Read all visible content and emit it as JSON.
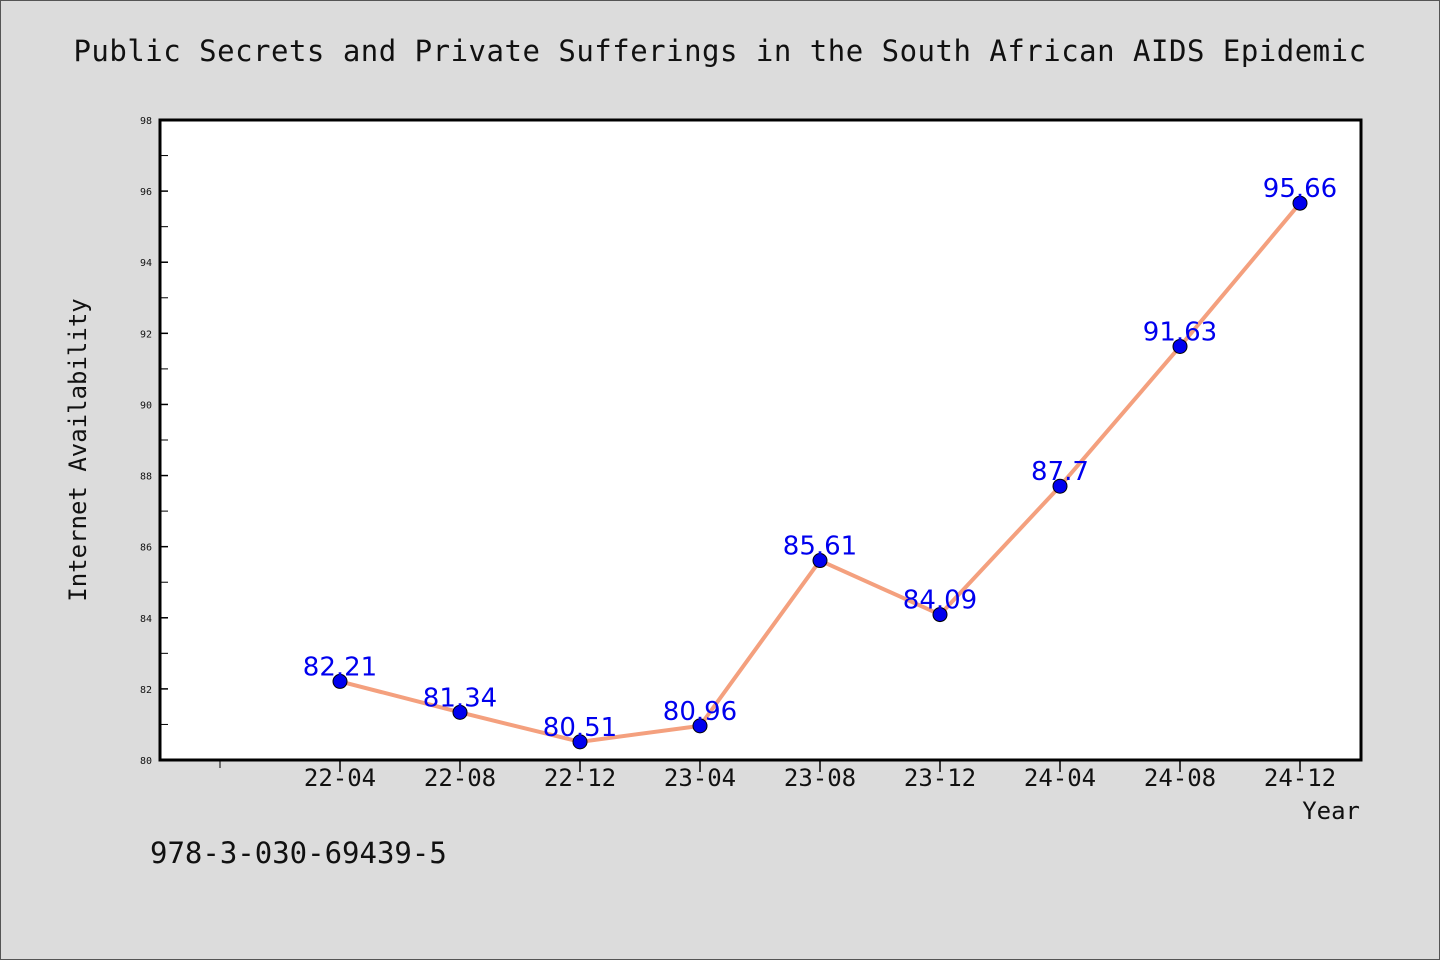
{
  "title": "Public Secrets and Private Sufferings in the South African AIDS Epidemic",
  "isbn": "978-3-030-69439-5",
  "chart_data": {
    "type": "line",
    "title": "Public Secrets and Private Sufferings in the South African AIDS Epidemic",
    "xlabel": "Year",
    "ylabel": "Internet Availability",
    "categories": [
      "22-04",
      "22-08",
      "22-12",
      "23-04",
      "23-08",
      "23-12",
      "24-04",
      "24-08",
      "24-12"
    ],
    "series": [
      {
        "values": [
          82.21,
          81.34,
          80.51,
          80.96,
          85.61,
          84.09,
          87.7,
          91.63,
          95.66
        ]
      }
    ],
    "value_labels": [
      "82.21",
      "81.34",
      "80.51",
      "80.96",
      "85.61",
      "84.09",
      "87.7",
      "91.63",
      "95.66"
    ],
    "ylim": [
      80,
      98
    ],
    "yticks": [
      "80",
      "82",
      "84",
      "86",
      "88",
      "90",
      "92",
      "94",
      "96",
      "98"
    ],
    "grid": false,
    "line_color": "#f4a07e",
    "marker_color": "#0000ee",
    "label_color": "#0000ee"
  }
}
